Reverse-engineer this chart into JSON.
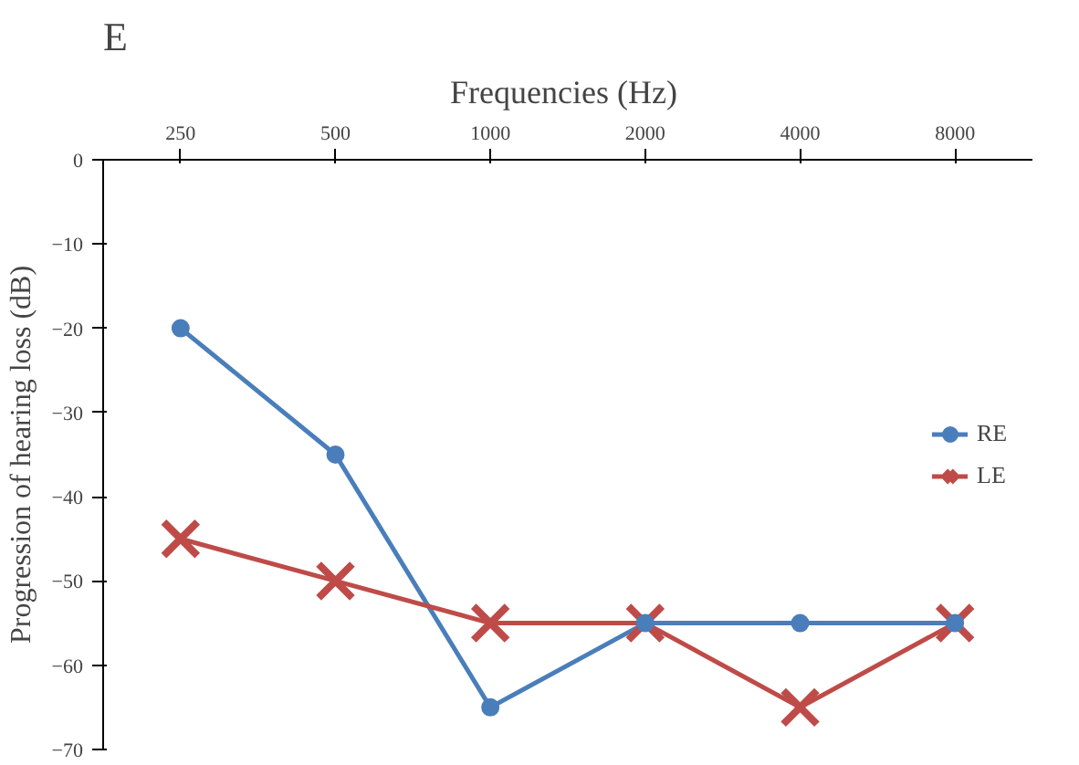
{
  "chart_data": {
    "type": "line",
    "title": "E",
    "xlabel": "Frequencies  (Hz)",
    "ylabel": "Progression of hearing loss (dB)",
    "categories": [
      "250",
      "500",
      "1000",
      "2000",
      "4000",
      "8000"
    ],
    "series": [
      {
        "name": "RE",
        "color": "#4a7ebb",
        "marker": "circle",
        "values": [
          -20,
          -35,
          -65,
          -55,
          -55,
          -55
        ]
      },
      {
        "name": "LE",
        "color": "#be4b48",
        "marker": "cross",
        "values": [
          -45,
          -50,
          -55,
          -55,
          -65,
          -55
        ]
      }
    ],
    "ylim": [
      -70,
      0
    ],
    "yticks": [
      0,
      -10,
      -20,
      -30,
      -40,
      -50,
      -60,
      -70
    ],
    "grid": false,
    "legend": "right",
    "line_style": "solid"
  }
}
